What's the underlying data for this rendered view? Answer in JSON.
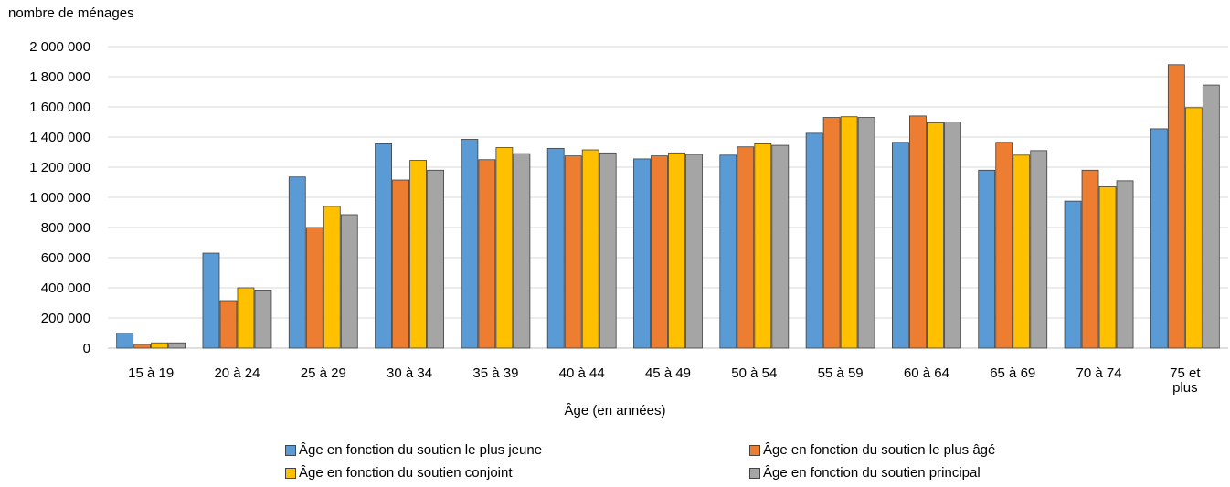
{
  "chart_data": {
    "type": "bar",
    "ylabel": "nombre de ménages",
    "xlabel": "Âge (en années)",
    "ylim": [
      0,
      2000000
    ],
    "ytick_values": [
      0,
      200000,
      400000,
      600000,
      800000,
      1000000,
      1200000,
      1400000,
      1600000,
      1800000,
      2000000
    ],
    "ytick_labels": [
      "0",
      "200 000",
      "400 000",
      "600 000",
      "800 000",
      "1 000 000",
      "1 200 000",
      "1 400 000",
      "1 600 000",
      "1 800 000",
      "2 000 000"
    ],
    "grid": true,
    "legend_position": "bottom",
    "categories": [
      "15 à 19",
      "20 à 24",
      "25 à 29",
      "30 à 34",
      "35 à 39",
      "40 à 44",
      "45 à 49",
      "50 à 54",
      "55 à 59",
      "60 à 64",
      "65 à 69",
      "70 à 74",
      "75 et plus"
    ],
    "series": [
      {
        "name": "Âge en fonction du soutien le plus jeune",
        "color": "#5b9bd5",
        "values": [
          100000,
          630000,
          1135000,
          1355000,
          1385000,
          1325000,
          1255000,
          1280000,
          1425000,
          1365000,
          1180000,
          975000,
          1455000
        ]
      },
      {
        "name": "Âge en fonction du soutien le plus âgé",
        "color": "#ed7d31",
        "values": [
          25000,
          315000,
          800000,
          1115000,
          1250000,
          1275000,
          1275000,
          1335000,
          1530000,
          1540000,
          1365000,
          1180000,
          1880000
        ]
      },
      {
        "name": "Âge en fonction du soutien conjoint",
        "color": "#ffc000",
        "values": [
          35000,
          400000,
          940000,
          1245000,
          1330000,
          1315000,
          1295000,
          1355000,
          1535000,
          1495000,
          1280000,
          1070000,
          1595000
        ]
      },
      {
        "name": "Âge en fonction du soutien principal",
        "color": "#a5a5a5",
        "values": [
          35000,
          385000,
          885000,
          1180000,
          1290000,
          1295000,
          1285000,
          1345000,
          1530000,
          1500000,
          1310000,
          1110000,
          1745000
        ]
      }
    ]
  }
}
